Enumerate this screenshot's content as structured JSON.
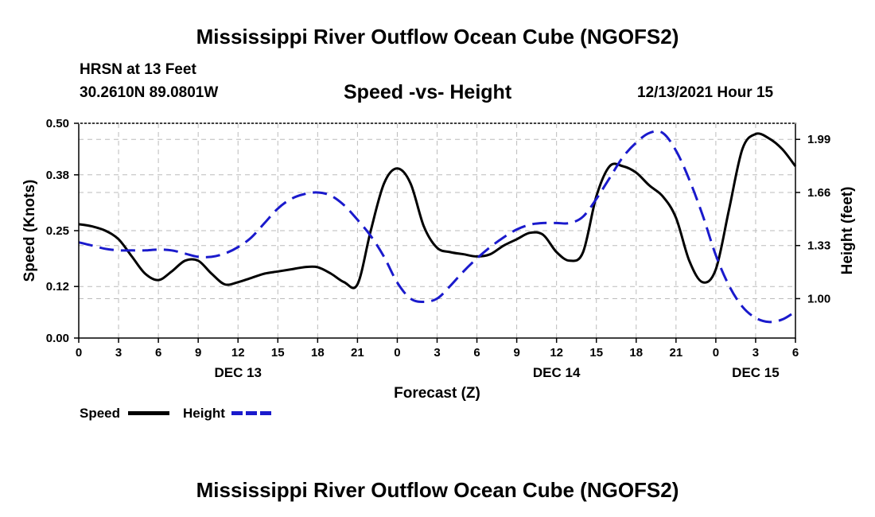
{
  "header": {
    "title": "Mississippi River Outflow Ocean Cube (NGOFS2)",
    "station": "HRSN at 13 Feet",
    "coords": "30.2610N  89.0801W",
    "subtitle": "Speed -vs- Height",
    "date": "12/13/2021 Hour 15"
  },
  "footer": {
    "title": "Mississippi River Outflow Ocean Cube (NGOFS2)"
  },
  "legend": {
    "speed_label": "Speed",
    "height_label": "Height",
    "speed_color": "#000000",
    "height_color": "#1a1acc"
  },
  "chart_data": {
    "type": "line",
    "title": "Speed -vs- Height",
    "xlabel": "Forecast (Z)",
    "ylabel": "Speed (Knots)",
    "y2label": "Height (feet)",
    "xlim": [
      0,
      54
    ],
    "ylim": [
      0,
      0.5
    ],
    "y2lim": [
      0.755,
      2.09
    ],
    "x_ticks": [
      0,
      3,
      6,
      9,
      12,
      15,
      18,
      21,
      24,
      27,
      30,
      33,
      36,
      39,
      42,
      45,
      48,
      51,
      54
    ],
    "x_tick_labels": [
      "0",
      "3",
      "6",
      "9",
      "12",
      "15",
      "18",
      "21",
      "0",
      "3",
      "6",
      "9",
      "12",
      "15",
      "18",
      "21",
      "0",
      "3",
      "6"
    ],
    "day_labels": [
      {
        "x": 12,
        "label": "DEC 13"
      },
      {
        "x": 36,
        "label": "DEC 14"
      },
      {
        "x": 51,
        "label": "DEC 15"
      }
    ],
    "y_ticks": [
      0,
      0.12,
      0.25,
      0.38,
      0.5
    ],
    "y_tick_labels": [
      "0.00",
      "0.12",
      "0.25",
      "0.38",
      "0.50"
    ],
    "y2_ticks": [
      1.0,
      1.33,
      1.66,
      1.99
    ],
    "y2_tick_labels": [
      "1.00",
      "1.33",
      "1.66",
      "1.99"
    ],
    "grid": true,
    "series": [
      {
        "name": "Speed",
        "axis": "left",
        "color": "#000000",
        "dash": "solid",
        "x": [
          0,
          1,
          2,
          3,
          4,
          5,
          6,
          7,
          8,
          9,
          10,
          11,
          12,
          13,
          14,
          15,
          16,
          17,
          18,
          19,
          20,
          21,
          22,
          23,
          24,
          25,
          26,
          27,
          28,
          29,
          30,
          31,
          32,
          33,
          34,
          35,
          36,
          37,
          38,
          39,
          40,
          41,
          42,
          43,
          44,
          45,
          46,
          47,
          48,
          49,
          50,
          51,
          52,
          53,
          54
        ],
        "values": [
          0.265,
          0.26,
          0.25,
          0.23,
          0.19,
          0.15,
          0.135,
          0.155,
          0.18,
          0.18,
          0.15,
          0.125,
          0.13,
          0.14,
          0.15,
          0.155,
          0.16,
          0.165,
          0.165,
          0.15,
          0.13,
          0.125,
          0.25,
          0.36,
          0.395,
          0.36,
          0.26,
          0.21,
          0.2,
          0.195,
          0.19,
          0.195,
          0.215,
          0.23,
          0.245,
          0.24,
          0.2,
          0.18,
          0.2,
          0.33,
          0.4,
          0.4,
          0.385,
          0.355,
          0.33,
          0.28,
          0.18,
          0.13,
          0.16,
          0.3,
          0.44,
          0.475,
          0.465,
          0.44,
          0.4
        ]
      },
      {
        "name": "Height",
        "axis": "right",
        "color": "#1a1acc",
        "dash": "dashed",
        "x": [
          0,
          1,
          2,
          3,
          4,
          5,
          6,
          7,
          8,
          9,
          10,
          11,
          12,
          13,
          14,
          15,
          16,
          17,
          18,
          19,
          20,
          21,
          22,
          23,
          24,
          25,
          26,
          27,
          28,
          29,
          30,
          31,
          32,
          33,
          34,
          35,
          36,
          37,
          38,
          39,
          40,
          41,
          42,
          43,
          44,
          45,
          46,
          47,
          48,
          49,
          50,
          51,
          52,
          53,
          54
        ],
        "values": [
          1.35,
          1.33,
          1.31,
          1.3,
          1.3,
          1.3,
          1.305,
          1.3,
          1.28,
          1.26,
          1.26,
          1.28,
          1.32,
          1.38,
          1.47,
          1.56,
          1.62,
          1.65,
          1.66,
          1.64,
          1.58,
          1.49,
          1.39,
          1.26,
          1.1,
          1.0,
          0.98,
          1.0,
          1.08,
          1.17,
          1.25,
          1.32,
          1.38,
          1.43,
          1.46,
          1.47,
          1.47,
          1.47,
          1.51,
          1.62,
          1.75,
          1.88,
          1.97,
          2.03,
          2.03,
          1.92,
          1.74,
          1.52,
          1.27,
          1.08,
          0.95,
          0.88,
          0.855,
          0.87,
          0.92
        ]
      }
    ]
  }
}
